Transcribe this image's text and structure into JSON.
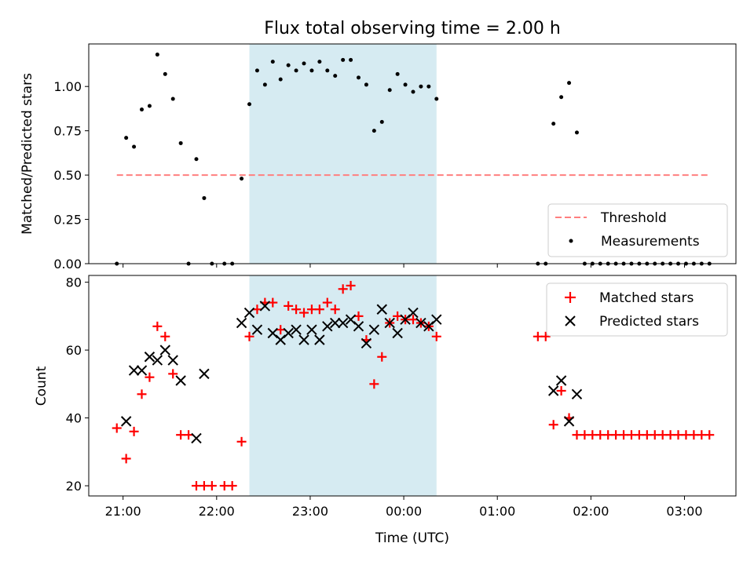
{
  "chart_data": [
    {
      "type": "scatter",
      "title": "Flux total observing time = 2.00 h",
      "ylabel": "Matched/Predicted stars",
      "xlabel": "",
      "x_unit": "minutes after 21:00 UTC",
      "xlim": [
        -22,
        393
      ],
      "ylim": [
        0,
        1.24
      ],
      "yticks": [
        "0.00",
        "0.25",
        "0.50",
        "0.75",
        "1.00"
      ],
      "shaded_interval": [
        81,
        201
      ],
      "shade_color": "#add8e6",
      "threshold": {
        "name": "Threshold",
        "y": 0.5,
        "x": [
          -4,
          376
        ],
        "color": "#ff7f7f",
        "style": "dashed"
      },
      "legend": {
        "position": "lower-right",
        "entries": [
          "Threshold",
          "Measurements"
        ]
      },
      "series": [
        {
          "name": "Measurements",
          "marker": "dot",
          "color": "#000000",
          "points": [
            [
              -4,
              0.0
            ],
            [
              2,
              0.71
            ],
            [
              7,
              0.66
            ],
            [
              12,
              0.87
            ],
            [
              17,
              0.89
            ],
            [
              22,
              1.18
            ],
            [
              27,
              1.07
            ],
            [
              32,
              0.93
            ],
            [
              37,
              0.68
            ],
            [
              42,
              0.0
            ],
            [
              47,
              0.59
            ],
            [
              52,
              0.37
            ],
            [
              57,
              0.0
            ],
            [
              65,
              0.0
            ],
            [
              70,
              0.0
            ],
            [
              76,
              0.48
            ],
            [
              81,
              0.9
            ],
            [
              86,
              1.09
            ],
            [
              91,
              1.01
            ],
            [
              96,
              1.14
            ],
            [
              101,
              1.04
            ],
            [
              106,
              1.12
            ],
            [
              111,
              1.09
            ],
            [
              116,
              1.13
            ],
            [
              121,
              1.09
            ],
            [
              126,
              1.14
            ],
            [
              131,
              1.09
            ],
            [
              136,
              1.06
            ],
            [
              141,
              1.15
            ],
            [
              146,
              1.15
            ],
            [
              151,
              1.05
            ],
            [
              156,
              1.01
            ],
            [
              161,
              0.75
            ],
            [
              166,
              0.8
            ],
            [
              171,
              0.98
            ],
            [
              176,
              1.07
            ],
            [
              181,
              1.01
            ],
            [
              186,
              0.97
            ],
            [
              191,
              1.0
            ],
            [
              196,
              1.0
            ],
            [
              201,
              0.93
            ],
            [
              266,
              0.0
            ],
            [
              271,
              0.0
            ],
            [
              276,
              0.79
            ],
            [
              281,
              0.94
            ],
            [
              286,
              1.02
            ],
            [
              291,
              0.74
            ],
            [
              296,
              0.0
            ],
            [
              301,
              0.0
            ],
            [
              306,
              0.0
            ],
            [
              311,
              0.0
            ],
            [
              316,
              0.0
            ],
            [
              321,
              0.0
            ],
            [
              326,
              0.0
            ],
            [
              331,
              0.0
            ],
            [
              336,
              0.0
            ],
            [
              341,
              0.0
            ],
            [
              346,
              0.0
            ],
            [
              351,
              0.0
            ],
            [
              356,
              0.0
            ],
            [
              361,
              0.0
            ],
            [
              366,
              0.0
            ],
            [
              371,
              0.0
            ],
            [
              376,
              0.0
            ]
          ]
        }
      ]
    },
    {
      "type": "scatter",
      "title": "",
      "xlabel": "Time (UTC)",
      "ylabel": "Count",
      "x_unit": "minutes after 21:00 UTC",
      "xlim": [
        -22,
        393
      ],
      "ylim": [
        17,
        82
      ],
      "yticks": [
        "20",
        "40",
        "60",
        "80"
      ],
      "xticks": [
        "21:00",
        "22:00",
        "23:00",
        "00:00",
        "01:00",
        "02:00",
        "03:00"
      ],
      "xtick_values": [
        0,
        60,
        120,
        180,
        240,
        300,
        360
      ],
      "shaded_interval": [
        81,
        201
      ],
      "shade_color": "#add8e6",
      "legend": {
        "position": "upper-right",
        "entries": [
          "Matched stars",
          "Predicted stars"
        ]
      },
      "series": [
        {
          "name": "Matched stars",
          "marker": "plus",
          "color": "#ff0000",
          "points": [
            [
              -4,
              37
            ],
            [
              2,
              28
            ],
            [
              7,
              36
            ],
            [
              12,
              47
            ],
            [
              17,
              52
            ],
            [
              22,
              67
            ],
            [
              27,
              64
            ],
            [
              32,
              53
            ],
            [
              37,
              35
            ],
            [
              42,
              35
            ],
            [
              47,
              20
            ],
            [
              52,
              20
            ],
            [
              57,
              20
            ],
            [
              65,
              20
            ],
            [
              70,
              20
            ],
            [
              76,
              33
            ],
            [
              81,
              64
            ],
            [
              86,
              72
            ],
            [
              91,
              74
            ],
            [
              96,
              74
            ],
            [
              101,
              66
            ],
            [
              106,
              73
            ],
            [
              111,
              72
            ],
            [
              116,
              71
            ],
            [
              121,
              72
            ],
            [
              126,
              72
            ],
            [
              131,
              74
            ],
            [
              136,
              72
            ],
            [
              141,
              78
            ],
            [
              146,
              79
            ],
            [
              151,
              70
            ],
            [
              156,
              63
            ],
            [
              161,
              50
            ],
            [
              166,
              58
            ],
            [
              171,
              68
            ],
            [
              176,
              70
            ],
            [
              181,
              69
            ],
            [
              186,
              69
            ],
            [
              191,
              68
            ],
            [
              196,
              67
            ],
            [
              201,
              64
            ],
            [
              266,
              64
            ],
            [
              271,
              64
            ],
            [
              276,
              38
            ],
            [
              281,
              48
            ],
            [
              286,
              40
            ],
            [
              291,
              35
            ],
            [
              296,
              35
            ],
            [
              301,
              35
            ],
            [
              306,
              35
            ],
            [
              311,
              35
            ],
            [
              316,
              35
            ],
            [
              321,
              35
            ],
            [
              326,
              35
            ],
            [
              331,
              35
            ],
            [
              336,
              35
            ],
            [
              341,
              35
            ],
            [
              346,
              35
            ],
            [
              351,
              35
            ],
            [
              356,
              35
            ],
            [
              361,
              35
            ],
            [
              366,
              35
            ],
            [
              371,
              35
            ],
            [
              376,
              35
            ]
          ]
        },
        {
          "name": "Predicted stars",
          "marker": "x",
          "color": "#000000",
          "points": [
            [
              2,
              39
            ],
            [
              7,
              54
            ],
            [
              12,
              54
            ],
            [
              17,
              58
            ],
            [
              22,
              57
            ],
            [
              27,
              60
            ],
            [
              32,
              57
            ],
            [
              37,
              51
            ],
            [
              47,
              34
            ],
            [
              52,
              53
            ],
            [
              76,
              68
            ],
            [
              81,
              71
            ],
            [
              86,
              66
            ],
            [
              91,
              73
            ],
            [
              96,
              65
            ],
            [
              101,
              63
            ],
            [
              106,
              65
            ],
            [
              111,
              66
            ],
            [
              116,
              63
            ],
            [
              121,
              66
            ],
            [
              126,
              63
            ],
            [
              131,
              67
            ],
            [
              136,
              68
            ],
            [
              141,
              68
            ],
            [
              146,
              69
            ],
            [
              151,
              67
            ],
            [
              156,
              62
            ],
            [
              161,
              66
            ],
            [
              166,
              72
            ],
            [
              171,
              68
            ],
            [
              176,
              65
            ],
            [
              181,
              69
            ],
            [
              186,
              71
            ],
            [
              191,
              68
            ],
            [
              196,
              67
            ],
            [
              201,
              69
            ],
            [
              276,
              48
            ],
            [
              281,
              51
            ],
            [
              286,
              39
            ],
            [
              291,
              47
            ]
          ]
        }
      ]
    }
  ]
}
